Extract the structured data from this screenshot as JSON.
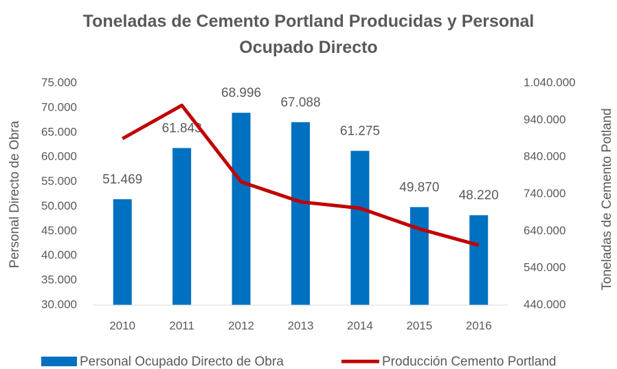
{
  "chart_data": {
    "type": "bar-line",
    "title": "Toneladas de Cemento Portland Producidas y Personal Ocupado Directo",
    "y_label": "Personal Directo de Obra",
    "y2_label": "Toneladas de Cemento Potland",
    "categories": [
      "2010",
      "2011",
      "2012",
      "2013",
      "2014",
      "2015",
      "2016"
    ],
    "series": [
      {
        "name": "Personal Ocupado Directo de Obra",
        "type": "bar",
        "color": "#0070c0",
        "values": [
          51469,
          61843,
          68996,
          67088,
          61275,
          49870,
          48220
        ],
        "value_labels": [
          "51.469",
          "61.843",
          "68.996",
          "67.088",
          "61.275",
          "49.870",
          "48.220"
        ]
      },
      {
        "name": "Producción Cemento Portland",
        "type": "line",
        "axis": "y2",
        "color": "#c00000",
        "values": [
          890000,
          980000,
          773000,
          719000,
          702000,
          646000,
          602000
        ]
      }
    ],
    "ylim": [
      30000,
      75000
    ],
    "yticks": [
      {
        "value": 30000,
        "label": "30.000"
      },
      {
        "value": 35000,
        "label": "35.000"
      },
      {
        "value": 40000,
        "label": "40.000"
      },
      {
        "value": 45000,
        "label": "45.000"
      },
      {
        "value": 50000,
        "label": "50.000"
      },
      {
        "value": 55000,
        "label": "55.000"
      },
      {
        "value": 60000,
        "label": "60.000"
      },
      {
        "value": 65000,
        "label": "65.000"
      },
      {
        "value": 70000,
        "label": "70.000"
      },
      {
        "value": 75000,
        "label": "75.000"
      }
    ],
    "y2lim": [
      440000,
      1040000
    ],
    "y2ticks": [
      {
        "value": 440000,
        "label": "440.000"
      },
      {
        "value": 540000,
        "label": "540.000"
      },
      {
        "value": 640000,
        "label": "640.000"
      },
      {
        "value": 740000,
        "label": "740.000"
      },
      {
        "value": 840000,
        "label": "840.000"
      },
      {
        "value": 940000,
        "label": "940.000"
      },
      {
        "value": 1040000,
        "label": "1.040.000"
      }
    ],
    "legend": "bottom"
  }
}
